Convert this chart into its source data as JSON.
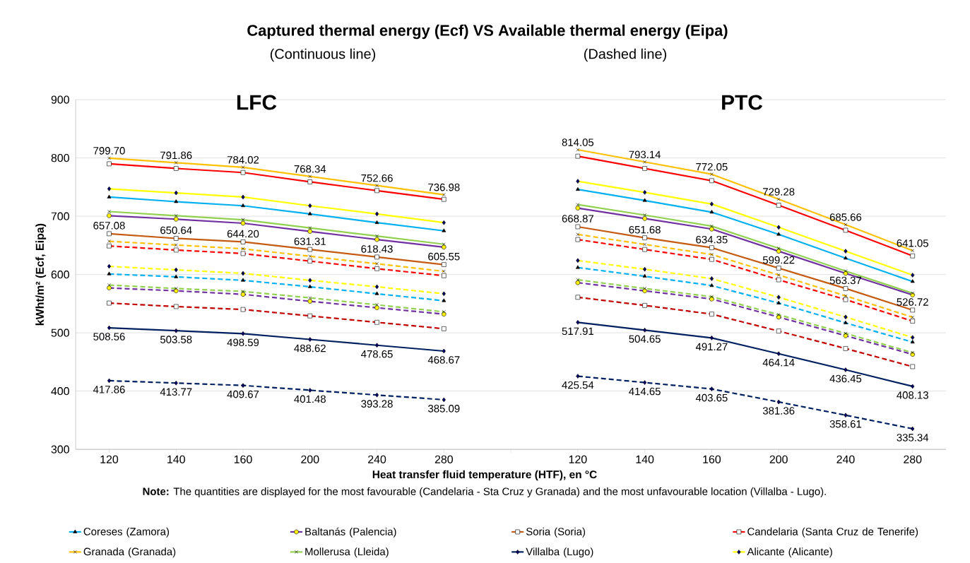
{
  "chart_data": {
    "type": "line",
    "title": "Captured thermal energy (Ecf) VS Available thermal energy (Eipa)",
    "ylabel": "kWht/m² (Ecf, Eipa)",
    "xlabel": "Heat transfer fluid temperature (HTF), en °C",
    "annotations": [
      "(Continuous line)",
      "(Dashed line)",
      "LFC",
      "PTC",
      "**Note:** The quantities are displayed for the most favourable (Candelaria - Sta Cruz y Granada) and the most unfavourable location (Villalba - Lugo)."
    ],
    "categories": [
      "120",
      "140",
      "160",
      "200",
      "240",
      "280",
      null,
      "120",
      "140",
      "160",
      "200",
      "240",
      "280"
    ],
    "ylim": [
      300,
      900
    ],
    "yticks": [
      300,
      400,
      500,
      600,
      700,
      800,
      900
    ],
    "grid": "y",
    "legend": "bottom",
    "series": [
      {
        "name": "Coreses (Zamora)",
        "color": "#00b0f0",
        "marker": "triangle",
        "line_style": "solid",
        "values": [
          733,
          725,
          718,
          704,
          689,
          675,
          null,
          746,
          727,
          707,
          669,
          628,
          588
        ]
      },
      {
        "name": "Baltanás (Palencia)",
        "color": "#7030a0",
        "marker": "circle",
        "line_style": "solid",
        "values": [
          701,
          695,
          688,
          674,
          660,
          647,
          null,
          714,
          696,
          678,
          640,
          602,
          565
        ]
      },
      {
        "name": "Soria (Soria)",
        "color": "#c55a11",
        "marker": "square",
        "line_style": "solid",
        "values": [
          670,
          662,
          656,
          643,
          630,
          617,
          null,
          682,
          663,
          646,
          611,
          576,
          539
        ]
      },
      {
        "name": "Candelaria (Santa Cruz de Tenerife)",
        "color": "#ff0000",
        "marker": "square",
        "line_style": "solid",
        "values": [
          790,
          782,
          775,
          759,
          744,
          729,
          null,
          803,
          782,
          761,
          719,
          676,
          632
        ]
      },
      {
        "name": "Granada (Granada)",
        "color": "#ffc000",
        "marker": "cross",
        "line_style": "solid",
        "values": [
          799.7,
          791.86,
          784.02,
          768.34,
          752.66,
          736.98,
          null,
          814.05,
          793.14,
          772.05,
          729.28,
          685.66,
          641.05
        ],
        "value_labels": [
          "799.70",
          "791.86",
          "784.02",
          "768.34",
          "752.66",
          "736.98",
          null,
          "814.05",
          "793.14",
          "772.05",
          "729.28",
          "685.66",
          "641.05"
        ]
      },
      {
        "name": "Mollerusa (Lleida)",
        "color": "#92d050",
        "marker": "cross",
        "line_style": "solid",
        "values": [
          708,
          701,
          694,
          680,
          666,
          652,
          null,
          720,
          702,
          683,
          645,
          606,
          568
        ]
      },
      {
        "name": "Villalba (Lugo)",
        "color": "#002060",
        "marker": "diamond",
        "line_style": "solid",
        "values": [
          508.56,
          503.58,
          498.59,
          488.62,
          478.65,
          468.67,
          null,
          517.91,
          504.65,
          491.27,
          464.14,
          436.45,
          408.13
        ],
        "value_labels": [
          "508.56",
          "503.58",
          "498.59",
          "488.62",
          "478.65",
          "468.67",
          null,
          "517.91",
          "504.65",
          "491.27",
          "464.14",
          "436.45",
          "408.13"
        ]
      },
      {
        "name": "Alicante (Alicante)",
        "color": "#ffff00",
        "marker": "diamond",
        "line_style": "solid",
        "values": [
          747,
          740,
          733,
          718,
          704,
          689,
          null,
          760,
          741,
          721,
          681,
          640,
          599
        ]
      },
      {
        "color": "#00b0f0",
        "marker": "triangle",
        "line_style": "dashed",
        "values": [
          601,
          596,
          590,
          579,
          567,
          555,
          null,
          612,
          597,
          581,
          551,
          517,
          484
        ]
      },
      {
        "color": "#7030a0",
        "marker": "circle",
        "line_style": "dashed",
        "values": [
          577,
          572,
          566,
          554,
          543,
          532,
          null,
          586,
          572,
          558,
          527,
          495,
          463
        ]
      },
      {
        "color": "#c00000",
        "marker": "square",
        "line_style": "dashed",
        "values": [
          551,
          545,
          540,
          529,
          518,
          507,
          null,
          561,
          547,
          532,
          503,
          473,
          442
        ]
      },
      {
        "color": "#ff0000",
        "marker": "square",
        "line_style": "dashed",
        "values": [
          649,
          642,
          636,
          623,
          610,
          598,
          null,
          660,
          643,
          626,
          591,
          557,
          520
        ]
      },
      {
        "color": "#ffc000",
        "marker": "cross",
        "line_style": "dashed",
        "values": [
          657.08,
          650.64,
          644.2,
          631.31,
          618.43,
          605.55,
          null,
          668.87,
          651.68,
          634.35,
          599.22,
          563.37,
          526.72
        ],
        "value_labels": [
          "657.08",
          "650.64",
          "644.20",
          "631.31",
          "618.43",
          "605.55",
          null,
          "668.87",
          "651.68",
          "634.35",
          "599.22",
          "563.37",
          "526.72"
        ]
      },
      {
        "color": "#92d050",
        "marker": "cross",
        "line_style": "dashed",
        "values": [
          582,
          576,
          571,
          560,
          548,
          536,
          null,
          591,
          576,
          562,
          531,
          499,
          466
        ]
      },
      {
        "color": "#002060",
        "marker": "diamond",
        "line_style": "dashed",
        "values": [
          417.86,
          413.77,
          409.67,
          401.48,
          393.28,
          385.09,
          null,
          425.54,
          414.65,
          403.65,
          381.36,
          358.61,
          335.34
        ],
        "value_labels": [
          "417.86",
          "413.77",
          "409.67",
          "401.48",
          "393.28",
          "385.09",
          null,
          "425.54",
          "414.65",
          "403.65",
          "381.36",
          "358.61",
          "335.34"
        ]
      },
      {
        "color": "#ffff00",
        "marker": "diamond",
        "line_style": "dashed",
        "values": [
          614,
          608,
          602,
          590,
          579,
          567,
          null,
          624,
          609,
          593,
          561,
          527,
          492
        ]
      }
    ]
  }
}
